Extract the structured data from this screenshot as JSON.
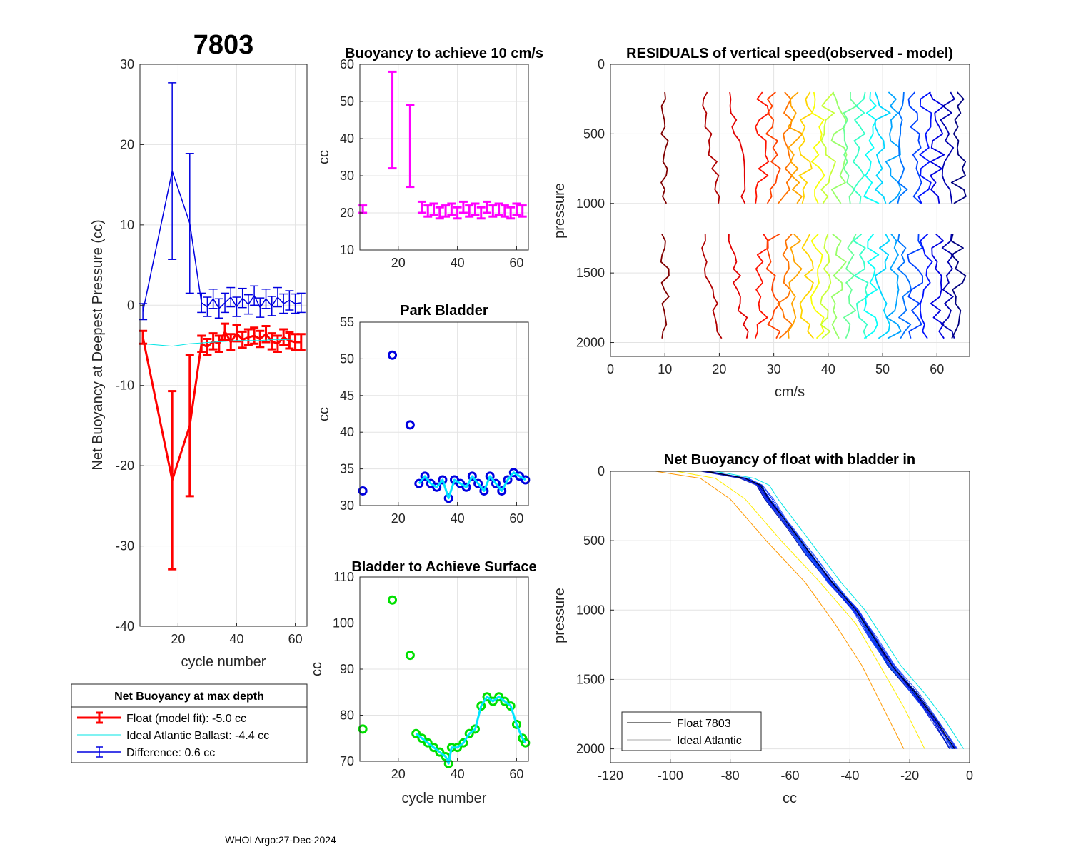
{
  "page": {
    "footer": "WHOI Argo:27-Dec-2024"
  },
  "colors": {
    "float": "#ff0000",
    "ideal": "#00e5e5",
    "difference": "#0000e0",
    "buoyancy": "#ff00ff",
    "park_marker": "#0000e0",
    "park_line": "#00e5ff",
    "surface_marker": "#00e000",
    "surface_line": "#00e5ff"
  },
  "legend": {
    "title": "Net Buoyancy at max depth",
    "float_label": "Float (model fit):  -5.0 cc",
    "ideal_label": "Ideal Atlantic Ballast:  -4.4 cc",
    "diff_label": "Difference:   0.6 cc"
  },
  "chart_data": [
    {
      "id": "net_buoyancy",
      "type": "line",
      "title": "7803",
      "xlabel": "cycle number",
      "ylabel": "Net Buoyancy at Deepest Pressure (cc)",
      "xlim": [
        7,
        64
      ],
      "ylim": [
        -40,
        30
      ],
      "xticks": [
        20,
        40,
        60
      ],
      "yticks": [
        -40,
        -30,
        -20,
        -10,
        0,
        10,
        20,
        30
      ],
      "series": [
        {
          "name": "Float (model fit)",
          "x": [
            8,
            18,
            24,
            28,
            30,
            32,
            34,
            36,
            38,
            40,
            42,
            44,
            46,
            48,
            50,
            52,
            54,
            56,
            58,
            60,
            62
          ],
          "y": [
            -4.0,
            -21.8,
            -15.0,
            -4.8,
            -5.2,
            -4.5,
            -4.8,
            -3.3,
            -4.6,
            -3.5,
            -4.3,
            -4.0,
            -3.8,
            -4.2,
            -3.6,
            -4.5,
            -4.8,
            -4.0,
            -4.4,
            -4.6,
            -4.6
          ],
          "err": [
            0.8,
            11.1,
            8.8,
            1.0,
            1.0,
            1.0,
            1.0,
            1.0,
            1.0,
            1.0,
            1.0,
            1.0,
            1.0,
            1.0,
            1.0,
            1.0,
            1.0,
            1.0,
            1.0,
            1.0,
            1.0
          ]
        },
        {
          "name": "Ideal Atlantic Ballast",
          "x": [
            8,
            18,
            24,
            28,
            32,
            36,
            40,
            44,
            48,
            52,
            56,
            60,
            63
          ],
          "y": [
            -4.8,
            -5.1,
            -4.8,
            -4.7,
            -4.6,
            -4.5,
            -4.4,
            -4.4,
            -4.4,
            -4.3,
            -4.3,
            -4.2,
            -4.2
          ]
        },
        {
          "name": "Difference",
          "x": [
            8,
            18,
            24,
            28,
            30,
            32,
            34,
            36,
            38,
            40,
            42,
            44,
            46,
            48,
            50,
            52,
            54,
            56,
            58,
            60,
            62
          ],
          "y": [
            -0.8,
            16.7,
            10.2,
            0.3,
            -0.2,
            0.8,
            -0.4,
            0.3,
            1.0,
            -0.2,
            0.9,
            0.1,
            1.2,
            -0.3,
            0.8,
            -0.1,
            1.0,
            0.2,
            0.6,
            0.2,
            0.3
          ],
          "err": [
            1.0,
            11.0,
            8.7,
            1.2,
            1.2,
            1.2,
            1.2,
            1.2,
            1.2,
            1.2,
            1.2,
            1.2,
            1.2,
            1.2,
            1.2,
            1.2,
            1.2,
            1.2,
            1.2,
            1.2,
            1.2
          ]
        }
      ]
    },
    {
      "id": "buoyancy_10cms",
      "type": "scatter",
      "title": "Buoyancy to achieve 10 cm/s",
      "xlabel": "",
      "ylabel": "cc",
      "xlim": [
        7,
        64
      ],
      "ylim": [
        10,
        60
      ],
      "xticks": [
        20,
        40,
        60
      ],
      "yticks": [
        10,
        20,
        30,
        40,
        50,
        60
      ],
      "x": [
        8,
        18,
        24,
        28,
        30,
        32,
        34,
        36,
        38,
        40,
        42,
        44,
        46,
        48,
        50,
        52,
        54,
        56,
        58,
        60,
        62
      ],
      "y": [
        21,
        45,
        38,
        21.5,
        20.5,
        21,
        20,
        20.5,
        21,
        20,
        21.5,
        20.5,
        21,
        20,
        21.5,
        20.5,
        21,
        20.5,
        20,
        21,
        20.5
      ],
      "err": [
        1.0,
        13.0,
        11.0,
        1.5,
        1.5,
        1.5,
        1.5,
        1.5,
        1.5,
        1.5,
        1.5,
        1.5,
        1.5,
        1.5,
        1.5,
        1.5,
        1.5,
        1.5,
        1.5,
        1.5,
        1.5
      ]
    },
    {
      "id": "park_bladder",
      "type": "scatter",
      "title": "Park Bladder",
      "xlabel": "",
      "ylabel": "cc",
      "xlim": [
        7,
        64
      ],
      "ylim": [
        30,
        55
      ],
      "xticks": [
        20,
        40,
        60
      ],
      "yticks": [
        30,
        35,
        40,
        45,
        50,
        55
      ],
      "x": [
        8,
        18,
        24,
        27,
        29,
        31,
        33,
        35,
        37,
        39,
        41,
        43,
        45,
        47,
        49,
        51,
        53,
        55,
        57,
        59,
        61,
        63
      ],
      "y": [
        32,
        50.5,
        41,
        33,
        34,
        33,
        32.5,
        33.5,
        31,
        33.5,
        33,
        32.5,
        34,
        33,
        32,
        34,
        33,
        32,
        33.5,
        34.5,
        34,
        33.5
      ]
    },
    {
      "id": "surface_bladder",
      "type": "scatter",
      "title": "Bladder to Achieve Surface",
      "xlabel": "cycle number",
      "ylabel": "cc",
      "xlim": [
        7,
        64
      ],
      "ylim": [
        70,
        110
      ],
      "xticks": [
        20,
        40,
        60
      ],
      "yticks": [
        70,
        80,
        90,
        100,
        110
      ],
      "x": [
        8,
        18,
        24,
        26,
        28,
        30,
        32,
        34,
        36,
        37,
        38,
        40,
        42,
        44,
        46,
        48,
        50,
        52,
        54,
        56,
        58,
        60,
        62,
        63
      ],
      "y": [
        77,
        105,
        93,
        76,
        75,
        74,
        73,
        72,
        71,
        69.5,
        73,
        73,
        74,
        76,
        77,
        82,
        84,
        83,
        84,
        83,
        82,
        78,
        75,
        74
      ]
    },
    {
      "id": "residuals",
      "type": "line",
      "title": "RESIDUALS of vertical speed(observed - model)",
      "xlabel": "cm/s",
      "ylabel": "pressure",
      "xlim": [
        0,
        66
      ],
      "ylim": [
        0,
        2100
      ],
      "y_reversed": true,
      "xticks": [
        0,
        10,
        20,
        30,
        40,
        50,
        60
      ],
      "yticks": [
        0,
        500,
        1000,
        1500,
        2000
      ],
      "offsets": [
        10,
        17,
        22,
        28,
        30,
        32,
        34,
        36,
        38,
        40,
        42,
        44,
        46,
        48,
        50,
        52,
        54,
        56,
        58,
        60,
        62,
        64
      ],
      "color_scale": "jet (red = early cycles, blue = late cycles)"
    },
    {
      "id": "net_buoyancy_profile",
      "type": "line",
      "title": "Net Buoyancy of float with bladder in",
      "xlabel": "cc",
      "ylabel": "pressure",
      "xlim": [
        -120,
        0
      ],
      "ylim": [
        0,
        2100
      ],
      "y_reversed": true,
      "xticks": [
        -120,
        -100,
        -80,
        -60,
        -40,
        -20,
        0
      ],
      "yticks": [
        0,
        500,
        1000,
        1500,
        2000
      ],
      "legend": [
        "Float 7803",
        "Ideal Atlantic"
      ],
      "profile": {
        "pressure": [
          0,
          50,
          100,
          200,
          400,
          600,
          800,
          1000,
          1200,
          1400,
          1600,
          1800,
          2000
        ],
        "cc": [
          -88,
          -75,
          -70,
          -67,
          -60,
          -53,
          -46,
          -38,
          -32,
          -26,
          -18,
          -11,
          -5
        ]
      },
      "early_profiles": [
        {
          "name": "orange",
          "pressure": [
            0,
            50,
            200,
            500,
            800,
            1100,
            1400,
            1700,
            2000
          ],
          "cc": [
            -105,
            -90,
            -80,
            -68,
            -55,
            -45,
            -36,
            -29,
            -22
          ]
        },
        {
          "name": "yellow",
          "pressure": [
            0,
            50,
            200,
            500,
            800,
            1100,
            1400,
            1700,
            2000
          ],
          "cc": [
            -98,
            -85,
            -75,
            -63,
            -50,
            -38,
            -30,
            -22,
            -15
          ]
        }
      ]
    }
  ]
}
